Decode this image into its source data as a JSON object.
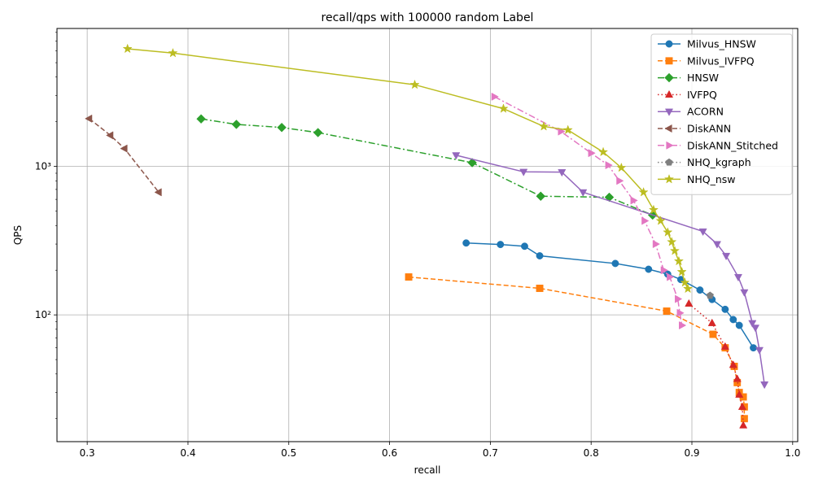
{
  "chart_data": {
    "type": "line",
    "title": "recall/qps with 100000 random Label",
    "xlabel": "recall",
    "ylabel": "QPS",
    "xlim": [
      0.27,
      1.005
    ],
    "ylim": [
      14,
      8500
    ],
    "yscale": "log",
    "x_ticks": [
      0.3,
      0.4,
      0.5,
      0.6,
      0.7,
      0.8,
      0.9,
      1.0
    ],
    "x_tick_labels": [
      "0.3",
      "0.4",
      "0.5",
      "0.6",
      "0.7",
      "0.8",
      "0.9",
      "1.0"
    ],
    "y_ticks": [
      100,
      1000
    ],
    "y_tick_labels": [
      "10²",
      "10³"
    ],
    "grid": true,
    "legend_position": "top-right",
    "series": [
      {
        "name": "Milvus_HNSW",
        "color": "#1f77b4",
        "marker": "circle",
        "dash": "solid",
        "x": [
          0.676,
          0.71,
          0.734,
          0.749,
          0.824,
          0.857,
          0.876,
          0.889,
          0.908,
          0.92,
          0.933,
          0.941,
          0.947,
          0.961
        ],
        "y": [
          305,
          298,
          290,
          250,
          222,
          203,
          188,
          173,
          147,
          127,
          109,
          93,
          85,
          60
        ]
      },
      {
        "name": "Milvus_IVFPQ",
        "color": "#ff7f0e",
        "marker": "square",
        "dash": "dashed",
        "x": [
          0.619,
          0.749,
          0.875,
          0.921,
          0.933,
          0.942,
          0.945,
          0.947,
          0.951,
          0.952,
          0.952
        ],
        "y": [
          180,
          151,
          106,
          74,
          60,
          45,
          35,
          30,
          28,
          24,
          20
        ]
      },
      {
        "name": "HNSW",
        "color": "#2ca02c",
        "marker": "diamond",
        "dash": "dashdot",
        "x": [
          0.413,
          0.448,
          0.493,
          0.529,
          0.682,
          0.75,
          0.818,
          0.861
        ],
        "y": [
          2090,
          1920,
          1830,
          1690,
          1060,
          630,
          620,
          470
        ]
      },
      {
        "name": "IVFPQ",
        "color": "#d62728",
        "marker": "triangle-up",
        "dash": "dotted",
        "x": [
          0.897,
          0.92,
          0.933,
          0.941,
          0.945,
          0.947,
          0.95,
          0.951
        ],
        "y": [
          119,
          88,
          61,
          46,
          37,
          29,
          24,
          18
        ]
      },
      {
        "name": "ACORN",
        "color": "#9467bd",
        "marker": "triangle-down",
        "dash": "solid",
        "x": [
          0.666,
          0.733,
          0.771,
          0.792,
          0.911,
          0.925,
          0.934,
          0.946,
          0.952,
          0.96,
          0.963,
          0.967,
          0.972
        ],
        "y": [
          1190,
          920,
          915,
          670,
          365,
          300,
          250,
          180,
          142,
          88,
          82,
          58,
          34
        ]
      },
      {
        "name": "DiskANN",
        "color": "#8c564b",
        "marker": "triangle-left",
        "dash": "dashed",
        "x": [
          0.302,
          0.323,
          0.337,
          0.371
        ],
        "y": [
          2100,
          1620,
          1320,
          670
        ]
      },
      {
        "name": "DiskANN_Stitched",
        "color": "#e377c2",
        "marker": "triangle-right",
        "dash": "dashdot",
        "x": [
          0.704,
          0.77,
          0.8,
          0.817,
          0.828,
          0.842,
          0.853,
          0.864,
          0.872,
          0.878,
          0.886,
          0.888,
          0.89
        ],
        "y": [
          2950,
          1720,
          1230,
          1020,
          800,
          590,
          430,
          300,
          200,
          180,
          128,
          103,
          85
        ]
      },
      {
        "name": "NHQ_kgraph",
        "color": "#7f7f7f",
        "marker": "pentagon",
        "dash": "dotted",
        "x": [
          0.918
        ],
        "y": [
          135
        ]
      },
      {
        "name": "NHQ_nsw",
        "color": "#bcbd22",
        "marker": "star",
        "dash": "solid",
        "x": [
          0.34,
          0.385,
          0.625,
          0.713,
          0.753,
          0.777,
          0.812,
          0.83,
          0.852,
          0.862,
          0.869,
          0.876,
          0.88,
          0.883,
          0.887,
          0.89,
          0.893,
          0.896
        ],
        "y": [
          6200,
          5800,
          3550,
          2450,
          1860,
          1760,
          1250,
          980,
          670,
          510,
          430,
          360,
          310,
          270,
          230,
          195,
          165,
          150
        ]
      }
    ]
  }
}
